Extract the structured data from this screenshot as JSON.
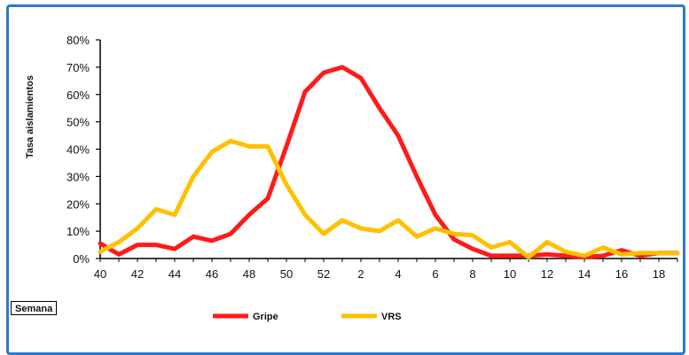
{
  "chart_data": {
    "type": "line",
    "ylabel": "Tasa aislamientos",
    "xlabel": "Semana",
    "y_ticks": [
      "0%",
      "10%",
      "20%",
      "30%",
      "40%",
      "50%",
      "60%",
      "70%",
      "80%"
    ],
    "ylim": [
      0,
      80
    ],
    "x_tick_labels": [
      "40",
      "42",
      "44",
      "46",
      "48",
      "50",
      "52",
      "2",
      "4",
      "6",
      "8",
      "10",
      "12",
      "14",
      "16",
      "18"
    ],
    "x": [
      40,
      41,
      42,
      43,
      44,
      45,
      46,
      47,
      48,
      49,
      50,
      51,
      52,
      1,
      2,
      3,
      4,
      5,
      6,
      7,
      8,
      9,
      10,
      11,
      12,
      13,
      14,
      15,
      16,
      17,
      18,
      19
    ],
    "series": [
      {
        "name": "Gripe",
        "color": "#ff1a1a",
        "values": [
          5.5,
          1.5,
          5,
          5,
          3.5,
          8,
          6.5,
          9,
          16,
          22,
          41,
          61,
          68,
          70,
          66,
          55,
          45,
          30,
          16,
          7,
          3.5,
          1,
          1,
          1,
          1.5,
          1,
          0.5,
          1,
          3,
          1,
          2,
          2
        ]
      },
      {
        "name": "VRS",
        "color": "#ffc000",
        "values": [
          2.5,
          6,
          11,
          18,
          16,
          30,
          39,
          43,
          41,
          41,
          27,
          16,
          9,
          14,
          11,
          10,
          14,
          8,
          11,
          9,
          8.5,
          4,
          6,
          0.5,
          6,
          2.5,
          1,
          4,
          1.5,
          2,
          2,
          2
        ]
      }
    ],
    "legend_position": "bottom-center",
    "grid": false
  }
}
